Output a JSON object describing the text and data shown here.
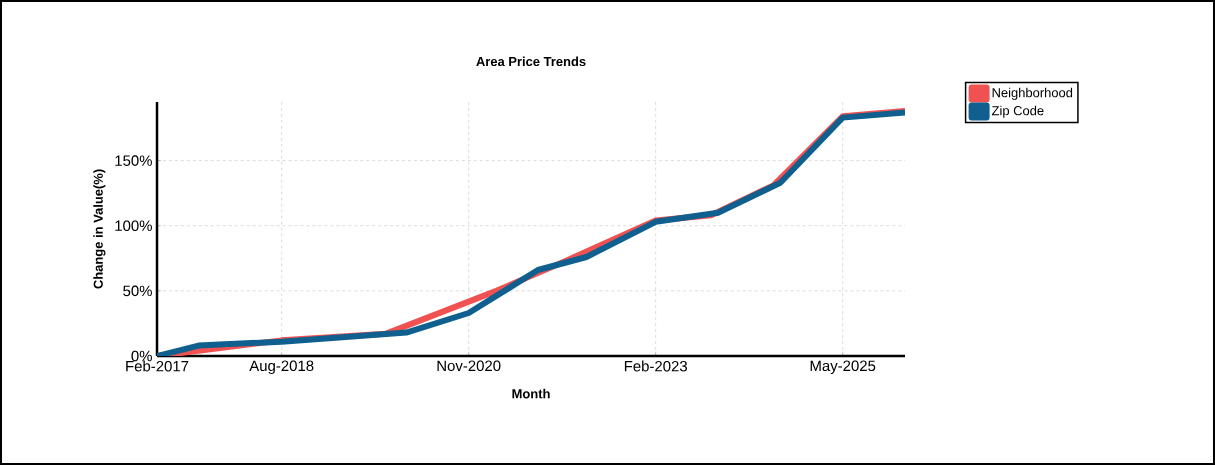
{
  "chart_data": {
    "type": "line",
    "title": "Area Price Trends",
    "xlabel": "Month",
    "ylabel": "Change in Value(%)",
    "series": [
      {
        "name": "Neighborhood",
        "color": "#f05252",
        "x": [
          "2017-02",
          "2018-08",
          "2019-11",
          "2021-03",
          "2022-01",
          "2023-02",
          "2023-10",
          "2024-07",
          "2025-05",
          "2026-02"
        ],
        "values": [
          0,
          12,
          17,
          50,
          73,
          104,
          108,
          131,
          184,
          188
        ]
      },
      {
        "name": "Zip Code",
        "color": "#0f5f8f",
        "x": [
          "2017-02",
          "2017-08",
          "2018-08",
          "2020-02",
          "2020-11",
          "2021-09",
          "2022-04",
          "2023-02",
          "2023-11",
          "2024-08",
          "2025-05",
          "2026-02"
        ],
        "values": [
          0,
          8,
          11,
          18,
          33,
          66,
          76,
          103,
          110,
          133,
          183,
          187
        ]
      }
    ],
    "xlim": [
      "2017-02",
      "2026-02"
    ],
    "xticks": [
      {
        "value": "2017-02",
        "label": "Feb-2017"
      },
      {
        "value": "2018-08",
        "label": "Aug-2018"
      },
      {
        "value": "2020-11",
        "label": "Nov-2020"
      },
      {
        "value": "2023-02",
        "label": "Feb-2023"
      },
      {
        "value": "2025-05",
        "label": "May-2025"
      }
    ],
    "ylim": [
      0,
      195
    ],
    "yticks": [
      {
        "value": 0,
        "label": "0%"
      },
      {
        "value": 50,
        "label": "50%"
      },
      {
        "value": 100,
        "label": "100%"
      },
      {
        "value": 150,
        "label": "150%"
      }
    ],
    "grid": true,
    "legend": "top right",
    "marker": "none",
    "line_style": "solid"
  }
}
